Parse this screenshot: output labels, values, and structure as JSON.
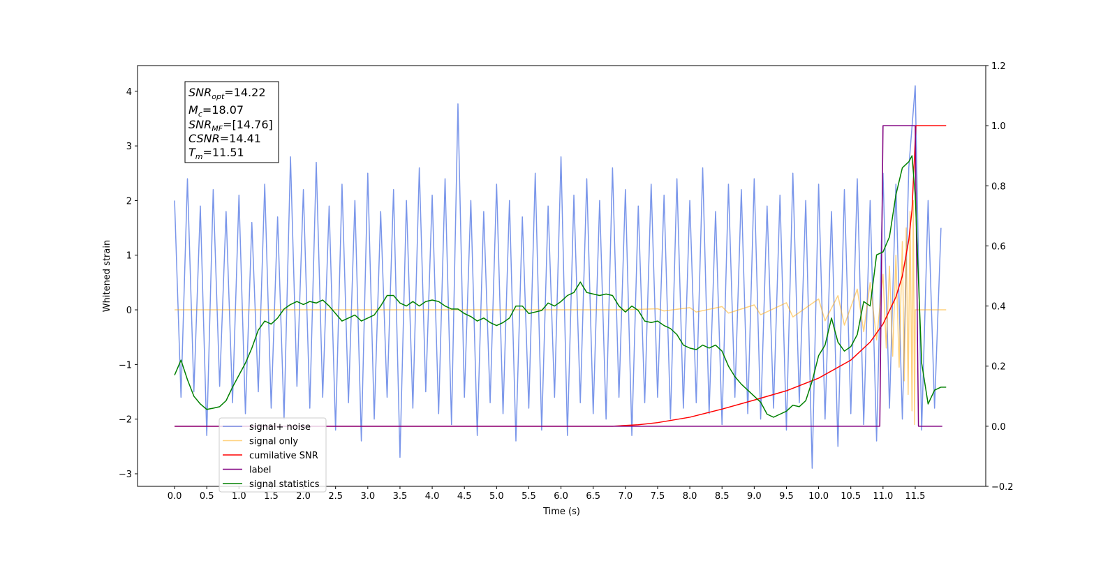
{
  "chart_data": {
    "type": "line",
    "xlabel": "Time (s)",
    "ylabel": "Whitened strain",
    "xlim": [
      -0.575,
      12.595
    ],
    "ylim": [
      -3.23,
      4.47
    ],
    "y2lim": [
      -0.2,
      1.2
    ],
    "xticks": [
      {
        "value": 0,
        "label": "0.0"
      },
      {
        "value": 0.5,
        "label": "0.5"
      },
      {
        "value": 1,
        "label": "1.0"
      },
      {
        "value": 1.5,
        "label": "1.5"
      },
      {
        "value": 2,
        "label": "2.0"
      },
      {
        "value": 2.5,
        "label": "2.5"
      },
      {
        "value": 3,
        "label": "3.0"
      },
      {
        "value": 3.5,
        "label": "3.5"
      },
      {
        "value": 4,
        "label": "4.0"
      },
      {
        "value": 4.5,
        "label": "4.5"
      },
      {
        "value": 5,
        "label": "5.0"
      },
      {
        "value": 5.5,
        "label": "5.5"
      },
      {
        "value": 6,
        "label": "6.0"
      },
      {
        "value": 6.5,
        "label": "6.5"
      },
      {
        "value": 7,
        "label": "7.0"
      },
      {
        "value": 7.5,
        "label": "7.5"
      },
      {
        "value": 8,
        "label": "8.0"
      },
      {
        "value": 8.5,
        "label": "8.5"
      },
      {
        "value": 9,
        "label": "9.0"
      },
      {
        "value": 9.5,
        "label": "9.5"
      },
      {
        "value": 10,
        "label": "10.0"
      },
      {
        "value": 10.5,
        "label": "10.5"
      },
      {
        "value": 11,
        "label": "11.0"
      },
      {
        "value": 11.5,
        "label": "11.5"
      }
    ],
    "yticks": [
      {
        "value": -3,
        "label": "−3"
      },
      {
        "value": -2,
        "label": "−2"
      },
      {
        "value": -1,
        "label": "−1"
      },
      0,
      1,
      2,
      3,
      4
    ],
    "y2ticks": [
      {
        "value": -0.2,
        "label": "−0.2"
      },
      {
        "value": 0,
        "label": "0.0"
      },
      0.2,
      0.4,
      0.6,
      0.8,
      {
        "value": 1,
        "label": "1.0"
      },
      1.2
    ],
    "legend": "lower left",
    "textbox": [
      {
        "base": "SNR",
        "sub": "opt",
        "text": "=14.22"
      },
      {
        "base": "M",
        "sub": "c",
        "text": "=18.07"
      },
      {
        "base": "SNR",
        "sub": "MF",
        "text": "=[14.76]"
      },
      {
        "base": "CSNR",
        "text": "=14.41"
      },
      {
        "base": "T",
        "sub": "m",
        "text": "=11.51"
      }
    ],
    "series": [
      {
        "name": "signal+ noise",
        "color": "#4169e1",
        "axis": "y",
        "x": [
          0,
          0.1,
          0.2,
          0.3,
          0.4,
          0.5,
          0.6,
          0.7,
          0.8,
          0.9,
          1,
          1.1,
          1.2,
          1.3,
          1.4,
          1.5,
          1.6,
          1.7,
          1.8,
          1.9,
          2,
          2.1,
          2.2,
          2.3,
          2.4,
          2.5,
          2.6,
          2.7,
          2.8,
          2.9,
          3,
          3.1,
          3.2,
          3.3,
          3.4,
          3.5,
          3.6,
          3.7,
          3.8,
          3.9,
          4,
          4.1,
          4.2,
          4.3,
          4.4,
          4.5,
          4.6,
          4.7,
          4.8,
          4.9,
          5,
          5.1,
          5.2,
          5.3,
          5.4,
          5.5,
          5.6,
          5.7,
          5.8,
          5.9,
          6,
          6.1,
          6.2,
          6.3,
          6.4,
          6.5,
          6.6,
          6.7,
          6.8,
          6.9,
          7,
          7.1,
          7.2,
          7.3,
          7.4,
          7.5,
          7.6,
          7.7,
          7.8,
          7.9,
          8,
          8.1,
          8.2,
          8.3,
          8.4,
          8.5,
          8.6,
          8.7,
          8.8,
          8.9,
          9,
          9.1,
          9.2,
          9.3,
          9.4,
          9.5,
          9.6,
          9.7,
          9.8,
          9.9,
          10,
          10.1,
          10.2,
          10.3,
          10.4,
          10.5,
          10.6,
          10.7,
          10.8,
          10.9,
          11,
          11.1,
          11.2,
          11.3,
          11.4,
          11.5,
          11.6,
          11.7,
          11.8,
          11.9
        ],
        "values": [
          2.0,
          -1.6,
          2.4,
          -1.5,
          1.9,
          -2.3,
          2.2,
          -1.4,
          1.8,
          -1.7,
          2.1,
          -1.9,
          1.6,
          -1.5,
          2.3,
          -1.8,
          1.7,
          -2.0,
          2.8,
          -1.4,
          2.2,
          -1.8,
          2.7,
          -1.6,
          1.9,
          -2.2,
          2.3,
          -1.7,
          2.0,
          -2.4,
          2.5,
          -2.0,
          1.8,
          -1.6,
          2.2,
          -2.7,
          2.0,
          -1.8,
          2.6,
          -1.5,
          2.1,
          -1.9,
          2.4,
          -2.1,
          3.77,
          -1.6,
          2.0,
          -2.3,
          1.8,
          -1.7,
          2.3,
          -1.9,
          2.0,
          -2.4,
          1.7,
          -1.8,
          2.5,
          -2.2,
          1.9,
          -1.6,
          2.8,
          -2.3,
          2.1,
          -1.7,
          2.4,
          -1.9,
          2.0,
          -2.0,
          2.6,
          -1.6,
          2.2,
          -2.3,
          1.9,
          -1.7,
          2.3,
          -1.6,
          2.1,
          -2.0,
          2.4,
          -1.8,
          2.0,
          -1.7,
          2.6,
          -1.9,
          1.8,
          -2.1,
          2.3,
          -1.6,
          2.2,
          -1.9,
          2.4,
          -2.0,
          1.9,
          -1.8,
          2.1,
          -2.2,
          2.5,
          -1.7,
          2.0,
          -2.9,
          2.3,
          -2.0,
          1.8,
          -2.5,
          2.2,
          -1.9,
          2.4,
          -2.1,
          2.0,
          -2.4,
          2.5,
          -1.8,
          2.3,
          -2.0,
          2.6,
          4.1,
          -2.2,
          2.0,
          -1.8,
          1.5
        ]
      },
      {
        "name": "signal only",
        "color": "#ffa500",
        "axis": "y",
        "x": [
          0,
          7.0,
          7.5,
          7.6,
          8.0,
          8.1,
          8.5,
          8.6,
          9.0,
          9.1,
          9.5,
          9.6,
          10.0,
          10.1,
          10.3,
          10.4,
          10.6,
          10.7,
          10.8,
          10.9,
          11.0,
          11.05,
          11.1,
          11.15,
          11.2,
          11.25,
          11.3,
          11.33,
          11.36,
          11.39,
          11.42,
          11.45,
          11.47,
          11.49,
          11.5,
          11.98
        ],
        "values": [
          0,
          0,
          0.02,
          -0.02,
          0.04,
          -0.04,
          0.06,
          -0.06,
          0.09,
          -0.09,
          0.13,
          -0.13,
          0.2,
          -0.2,
          0.26,
          -0.28,
          0.38,
          -0.4,
          0.5,
          -0.55,
          0.65,
          -0.7,
          0.8,
          -0.85,
          1.0,
          -1.05,
          1.25,
          -1.3,
          1.5,
          -1.55,
          1.8,
          -1.85,
          2.0,
          -2.1,
          0,
          0
        ]
      },
      {
        "name": "cumilative SNR",
        "color": "#ff0000",
        "axis": "y2",
        "x": [
          0,
          6.8,
          7.2,
          7.5,
          8.0,
          8.5,
          9.0,
          9.5,
          10.0,
          10.5,
          10.8,
          11.0,
          11.2,
          11.3,
          11.4,
          11.45,
          11.5,
          11.51,
          11.98
        ],
        "values": [
          0,
          0,
          0.005,
          0.012,
          0.03,
          0.057,
          0.087,
          0.118,
          0.16,
          0.22,
          0.28,
          0.34,
          0.43,
          0.5,
          0.62,
          0.72,
          0.95,
          1.0,
          1.0
        ]
      },
      {
        "name": "label",
        "color": "#800080",
        "axis": "y2",
        "x": [
          0,
          10.95,
          11.0,
          11.5,
          11.55,
          11.92
        ],
        "values": [
          0,
          0,
          1,
          1,
          0,
          0
        ]
      },
      {
        "name": "signal statistics",
        "color": "#008000",
        "axis": "y2",
        "x": [
          0,
          0.1,
          0.2,
          0.3,
          0.4,
          0.5,
          0.6,
          0.7,
          0.8,
          0.9,
          1,
          1.1,
          1.2,
          1.3,
          1.4,
          1.5,
          1.6,
          1.7,
          1.8,
          1.9,
          2,
          2.1,
          2.2,
          2.3,
          2.4,
          2.5,
          2.6,
          2.7,
          2.8,
          2.9,
          3,
          3.1,
          3.2,
          3.3,
          3.4,
          3.5,
          3.6,
          3.7,
          3.8,
          3.9,
          4,
          4.1,
          4.2,
          4.3,
          4.4,
          4.5,
          4.6,
          4.7,
          4.8,
          4.9,
          5,
          5.1,
          5.2,
          5.3,
          5.4,
          5.5,
          5.6,
          5.7,
          5.8,
          5.9,
          6,
          6.1,
          6.2,
          6.3,
          6.4,
          6.5,
          6.6,
          6.7,
          6.8,
          6.9,
          7,
          7.1,
          7.2,
          7.3,
          7.4,
          7.5,
          7.6,
          7.7,
          7.8,
          7.9,
          8,
          8.1,
          8.2,
          8.3,
          8.4,
          8.5,
          8.6,
          8.7,
          8.8,
          8.9,
          9,
          9.1,
          9.2,
          9.3,
          9.4,
          9.5,
          9.6,
          9.7,
          9.8,
          9.9,
          10,
          10.1,
          10.2,
          10.3,
          10.4,
          10.5,
          10.6,
          10.7,
          10.8,
          10.9,
          11,
          11.1,
          11.2,
          11.3,
          11.4,
          11.45,
          11.5,
          11.6,
          11.7,
          11.8,
          11.9,
          11.98
        ],
        "values": [
          0.17,
          0.22,
          0.155,
          0.1,
          0.074,
          0.056,
          0.06,
          0.065,
          0.085,
          0.13,
          0.17,
          0.21,
          0.26,
          0.32,
          0.35,
          0.34,
          0.36,
          0.39,
          0.405,
          0.415,
          0.405,
          0.415,
          0.41,
          0.42,
          0.4,
          0.375,
          0.35,
          0.36,
          0.37,
          0.35,
          0.36,
          0.37,
          0.4,
          0.435,
          0.435,
          0.41,
          0.4,
          0.415,
          0.4,
          0.415,
          0.42,
          0.415,
          0.4,
          0.39,
          0.39,
          0.375,
          0.365,
          0.35,
          0.36,
          0.345,
          0.335,
          0.345,
          0.36,
          0.4,
          0.4,
          0.375,
          0.38,
          0.385,
          0.41,
          0.4,
          0.415,
          0.435,
          0.445,
          0.48,
          0.445,
          0.44,
          0.435,
          0.44,
          0.435,
          0.4,
          0.38,
          0.4,
          0.385,
          0.35,
          0.345,
          0.35,
          0.335,
          0.325,
          0.305,
          0.27,
          0.26,
          0.255,
          0.27,
          0.26,
          0.27,
          0.25,
          0.2,
          0.165,
          0.14,
          0.12,
          0.1,
          0.08,
          0.04,
          0.03,
          0.04,
          0.05,
          0.07,
          0.065,
          0.085,
          0.15,
          0.235,
          0.27,
          0.36,
          0.28,
          0.25,
          0.265,
          0.305,
          0.415,
          0.4,
          0.57,
          0.58,
          0.63,
          0.77,
          0.86,
          0.88,
          0.9,
          0.77,
          0.21,
          0.074,
          0.12,
          0.13,
          0.13
        ]
      }
    ]
  }
}
